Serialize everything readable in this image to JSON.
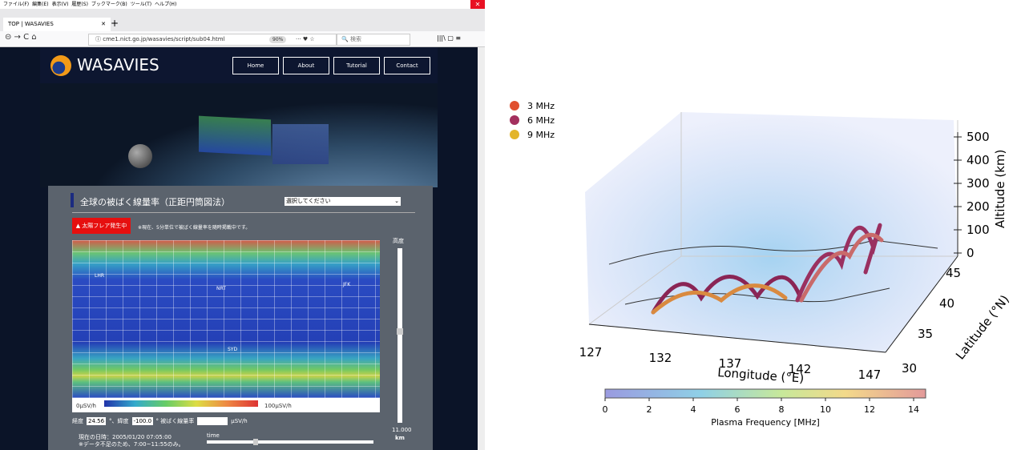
{
  "browser": {
    "menu": [
      "ファイル(F)",
      "編集(E)",
      "表示(V)",
      "履歴(S)",
      "ブックマーク(B)",
      "ツール(T)",
      "ヘルプ(H)"
    ],
    "tab_title": "TOP | WASAVIES",
    "url": "cme1.nict.go.jp/wasavies/script/sub04.html",
    "zoom": "90%",
    "search": "検索"
  },
  "site": {
    "logo": "WASAVIES",
    "nav": [
      "Home",
      "About",
      "Tutorial",
      "Contact"
    ],
    "panel": {
      "title": "全球の被ばく線量率（正距円筒図法）",
      "select": "選択してください",
      "alert": "▲ 太陽フレア発生中",
      "note": "※現在、5分単位で被ばく線量率を随時掲載中です。",
      "cities": [
        "LHR",
        "NRT",
        "JFK",
        "SYD"
      ],
      "scale_min": "0μSV/h",
      "scale_max": "100μSV/h",
      "altitude_label": "高度",
      "altitude_value": "11.000",
      "altitude_unit": "km",
      "lon_label": "経度",
      "lon_value": "24.56",
      "lat_label": "°、緯度",
      "lat_value": "-100.0",
      "dose_label": "°  被ばく線量率",
      "dose_unit": "μSV/h",
      "datetime": "現在の日時：2005/01/20 07:05:00",
      "data_note": "※データ不足のため、7:00~11:55のみ。",
      "time_label": "time"
    }
  },
  "figure": {
    "legend": [
      {
        "name": "3 MHz",
        "color": "#e0502f"
      },
      {
        "name": "6 MHz",
        "color": "#a3305e"
      },
      {
        "name": "9 MHz",
        "color": "#e3b52a"
      }
    ],
    "x_label": "Longitude (°E)",
    "x_ticks": [
      "127",
      "132",
      "137",
      "142",
      "147"
    ],
    "y_label": "Latitude (°N)",
    "y_ticks": [
      "30",
      "35",
      "40",
      "45"
    ],
    "z_label": "Altitude (km)",
    "z_ticks": [
      "0",
      "100",
      "200",
      "300",
      "400",
      "500"
    ],
    "colorbar": {
      "label": "Plasma Frequency [MHz]",
      "ticks": [
        "0",
        "2",
        "4",
        "6",
        "8",
        "10",
        "12",
        "14"
      ]
    }
  }
}
